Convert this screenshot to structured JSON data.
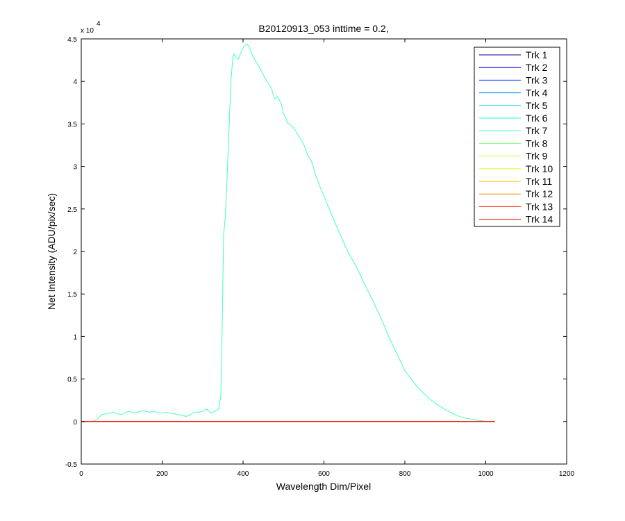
{
  "chart_data": {
    "type": "line",
    "title": "B20120913_053 inttime = 0.2,",
    "xlabel": "Wavelength Dim/Pixel",
    "ylabel": "Net Intensity (ADU/pix/sec)",
    "xlim": [
      0,
      1200
    ],
    "ylim": [
      -5000,
      45000
    ],
    "xticks": [
      0,
      200,
      400,
      600,
      800,
      1000,
      1200
    ],
    "xtick_labels": [
      "0",
      "200",
      "400",
      "600",
      "800",
      "1000",
      "1200"
    ],
    "yticks": [
      -5000,
      0,
      5000,
      10000,
      15000,
      20000,
      25000,
      30000,
      35000,
      40000,
      45000
    ],
    "ytick_labels": [
      "-0.5",
      "0",
      "0.5",
      "1",
      "1.5",
      "2",
      "2.5",
      "3",
      "3.5",
      "4",
      "4.5"
    ],
    "yscale_multiplier_base": "x 10",
    "yscale_multiplier_exp": "4",
    "grid": false,
    "legend_position": "top-right",
    "series": [
      {
        "name": "Trk 1",
        "color": "#00008f",
        "x": [
          0,
          1023
        ],
        "y": [
          0,
          0
        ]
      },
      {
        "name": "Trk 2",
        "color": "#0000df",
        "x": [
          0,
          1023
        ],
        "y": [
          0,
          0
        ]
      },
      {
        "name": "Trk 3",
        "color": "#0030ff",
        "x": [
          0,
          1023
        ],
        "y": [
          0,
          0
        ]
      },
      {
        "name": "Trk 4",
        "color": "#0080ff",
        "x": [
          0,
          1023
        ],
        "y": [
          0,
          0
        ]
      },
      {
        "name": "Trk 5",
        "color": "#00cfff",
        "x": [
          0,
          1023
        ],
        "y": [
          0,
          0
        ]
      },
      {
        "name": "Trk 6",
        "color": "#20ffdf",
        "x": [
          0,
          1023
        ],
        "y": [
          0,
          0
        ]
      },
      {
        "name": "Trk 7",
        "color": "#40ffbf",
        "x": [
          0,
          20,
          30,
          40,
          50,
          60,
          70,
          80,
          90,
          100,
          110,
          120,
          130,
          140,
          150,
          160,
          170,
          180,
          190,
          200,
          210,
          220,
          230,
          240,
          250,
          260,
          270,
          280,
          290,
          300,
          310,
          320,
          330,
          340,
          345,
          348,
          352,
          356,
          360,
          365,
          370,
          375,
          378,
          382,
          388,
          395,
          402,
          410,
          416,
          422,
          430,
          440,
          450,
          460,
          470,
          478,
          485,
          490,
          495,
          500,
          505,
          510,
          520,
          530,
          540,
          550,
          560,
          570,
          580,
          590,
          600,
          620,
          640,
          660,
          680,
          700,
          720,
          740,
          760,
          780,
          800,
          820,
          840,
          860,
          880,
          900,
          920,
          940,
          960,
          980,
          1000,
          1010,
          1020,
          1023
        ],
        "y": [
          0,
          0,
          0,
          300,
          800,
          900,
          1000,
          1100,
          900,
          800,
          1100,
          1200,
          1000,
          1100,
          1300,
          1200,
          1100,
          1200,
          1000,
          1000,
          1100,
          1000,
          900,
          800,
          700,
          600,
          800,
          1100,
          1100,
          1200,
          1500,
          1000,
          1200,
          1500,
          3000,
          10000,
          22000,
          24000,
          28000,
          34000,
          40000,
          43000,
          43200,
          42800,
          42600,
          43400,
          44100,
          44400,
          44000,
          43200,
          42500,
          41700,
          40800,
          39900,
          39200,
          37900,
          38200,
          37800,
          37300,
          36200,
          35800,
          35100,
          34800,
          34200,
          33400,
          32600,
          31300,
          30500,
          28900,
          27600,
          26500,
          24200,
          22000,
          19900,
          18200,
          16200,
          14300,
          12300,
          10000,
          8000,
          6000,
          4700,
          3600,
          2700,
          2000,
          1400,
          900,
          500,
          300,
          150,
          30,
          0,
          0,
          0
        ]
      },
      {
        "name": "Trk 8",
        "color": "#80ff80",
        "x": [
          0,
          1023
        ],
        "y": [
          0,
          0
        ]
      },
      {
        "name": "Trk 9",
        "color": "#bfff40",
        "x": [
          0,
          1023
        ],
        "y": [
          0,
          0
        ]
      },
      {
        "name": "Trk 10",
        "color": "#dfff20",
        "x": [
          0,
          1023
        ],
        "y": [
          0,
          0
        ]
      },
      {
        "name": "Trk 11",
        "color": "#ffbf00",
        "x": [
          0,
          1023
        ],
        "y": [
          0,
          0
        ]
      },
      {
        "name": "Trk 12",
        "color": "#ff8000",
        "x": [
          0,
          1023
        ],
        "y": [
          0,
          0
        ]
      },
      {
        "name": "Trk 13",
        "color": "#ff3000",
        "x": [
          0,
          1023
        ],
        "y": [
          0,
          0
        ]
      },
      {
        "name": "Trk 14",
        "color": "#df0000",
        "x": [
          0,
          1023
        ],
        "y": [
          0,
          0
        ]
      }
    ]
  }
}
